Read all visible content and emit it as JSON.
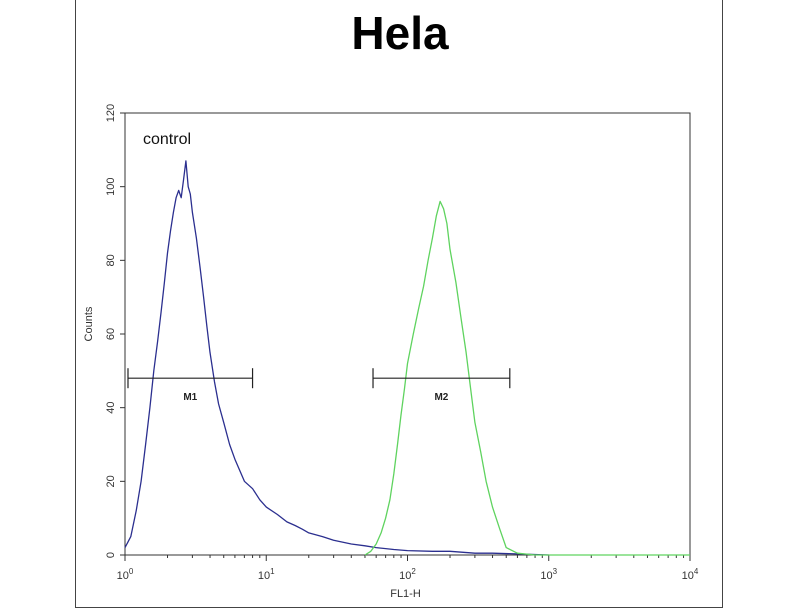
{
  "chart_data": {
    "type": "line",
    "title": "Hela",
    "xlabel": "FL1-H",
    "ylabel": "Counts",
    "x_scale": "log",
    "xlim": [
      1,
      10000
    ],
    "ylim": [
      0,
      120
    ],
    "x_ticks": [
      {
        "value": 1,
        "base": "10",
        "exp": "0"
      },
      {
        "value": 10,
        "base": "10",
        "exp": "1"
      },
      {
        "value": 100,
        "base": "10",
        "exp": "2"
      },
      {
        "value": 1000,
        "base": "10",
        "exp": "3"
      },
      {
        "value": 10000,
        "base": "10",
        "exp": "4"
      }
    ],
    "y_ticks": [
      "0",
      "20",
      "40",
      "60",
      "80",
      "100",
      "120"
    ],
    "grid": false,
    "annotations": [
      {
        "text": "control"
      }
    ],
    "series": [
      {
        "color": "#2b2f8f",
        "x": [
          1,
          1.1,
          1.2,
          1.3,
          1.4,
          1.5,
          1.6,
          1.7,
          1.8,
          1.9,
          2.0,
          2.1,
          2.2,
          2.3,
          2.4,
          2.5,
          2.6,
          2.7,
          2.8,
          2.9,
          3.0,
          3.2,
          3.4,
          3.6,
          3.8,
          4.0,
          4.3,
          4.6,
          5.0,
          5.5,
          6.0,
          7.0,
          8.0,
          9.0,
          10,
          12,
          14,
          16,
          18,
          20,
          25,
          30,
          40,
          50,
          60,
          80,
          100,
          150,
          200,
          300,
          400,
          600,
          1000
        ],
        "y": [
          2,
          5,
          12,
          20,
          30,
          40,
          50,
          58,
          66,
          74,
          82,
          88,
          93,
          97,
          99,
          97,
          102,
          107,
          100,
          98,
          93,
          86,
          78,
          70,
          62,
          55,
          47,
          41,
          36,
          30,
          26,
          20,
          18,
          15,
          13,
          11,
          9,
          8,
          7,
          6,
          5,
          4,
          3,
          2.5,
          2,
          1.5,
          1.2,
          1,
          1,
          0.5,
          0.5,
          0.3,
          0
        ]
      },
      {
        "color": "#5fd35f",
        "x": [
          50,
          55,
          60,
          65,
          70,
          75,
          80,
          85,
          90,
          95,
          100,
          110,
          120,
          130,
          140,
          150,
          160,
          170,
          180,
          190,
          200,
          220,
          240,
          260,
          280,
          300,
          330,
          360,
          400,
          450,
          500,
          600,
          800,
          1000,
          2000,
          5000,
          10000
        ],
        "y": [
          0,
          1,
          3,
          6,
          10,
          15,
          22,
          30,
          38,
          45,
          52,
          60,
          67,
          73,
          80,
          86,
          92,
          96,
          94,
          90,
          83,
          74,
          64,
          55,
          45,
          36,
          28,
          20,
          13,
          7,
          2,
          0.5,
          0,
          0,
          0,
          0,
          0
        ]
      }
    ],
    "markers": [
      {
        "label": "M1",
        "x_start": 1.05,
        "x_end": 8.0,
        "y": 48
      },
      {
        "label": "M2",
        "x_start": 57,
        "x_end": 530,
        "y": 48
      }
    ]
  }
}
